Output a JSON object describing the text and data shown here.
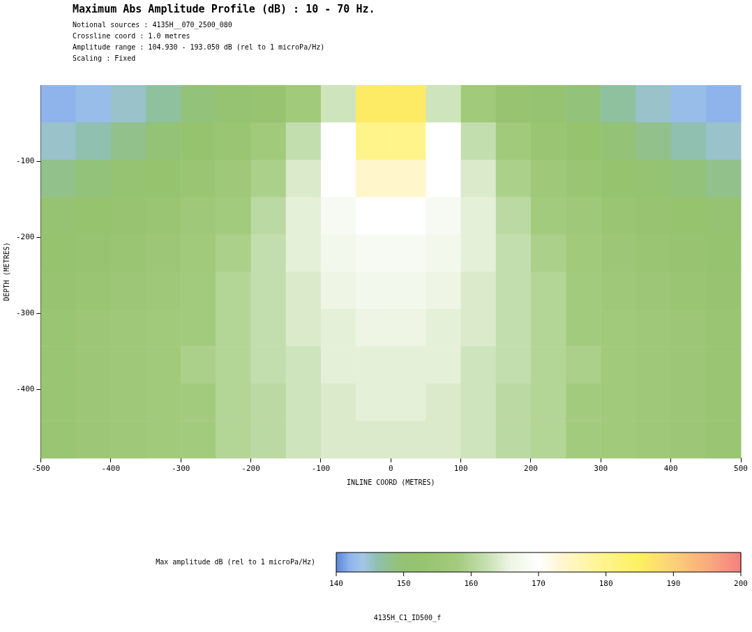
{
  "chart_data": {
    "type": "heatmap",
    "title": "Maximum Abs Amplitude Profile (dB) : 10 - 70 Hz.",
    "xlabel": "INLINE COORD (METRES)",
    "ylabel": "DEPTH (METRES)",
    "clabel": "Max amplitude dB (rel to 1 microPa/Hz)",
    "annotations": [
      "Notional sources : 4135H__070_2500_080",
      "Crossline coord : 1.0 metres",
      "Amplitude range : 104.930 - 193.050 dB (rel to 1 microPa/Hz)",
      "Scaling : Fixed",
      "4135H_C1_ID500_f"
    ],
    "x": [
      -475,
      -425,
      -375,
      -325,
      -275,
      -225,
      -175,
      -125,
      -75,
      -25,
      25,
      75,
      125,
      175,
      225,
      275,
      325,
      375,
      425,
      475
    ],
    "y": [
      -24.5,
      -73.5,
      -122.5,
      -171.5,
      -220.5,
      -269.5,
      -318.5,
      -367.5,
      -416.5,
      -465.5
    ],
    "xlim": [
      -500,
      500
    ],
    "xticks": [
      -500,
      -400,
      -300,
      -200,
      -100,
      0,
      100,
      200,
      300,
      400,
      500
    ],
    "ylim": [
      -490,
      0
    ],
    "yticks": [
      -100,
      -200,
      -300,
      -400
    ],
    "clim": [
      140,
      200
    ],
    "cticks": [
      140,
      150,
      160,
      170,
      180,
      190,
      200
    ],
    "cells": [
      [
        142,
        143,
        145,
        147,
        149,
        151,
        153,
        157,
        163,
        186,
        186,
        163,
        157,
        153,
        151,
        149,
        147,
        145,
        143,
        142
      ],
      [
        145,
        146,
        148,
        150,
        152,
        154,
        157,
        162,
        170,
        180,
        180,
        170,
        162,
        157,
        154,
        152,
        150,
        148,
        146,
        145
      ],
      [
        148,
        149,
        151,
        152,
        154,
        156,
        159,
        164,
        170,
        174,
        174,
        170,
        164,
        159,
        156,
        154,
        152,
        151,
        149,
        148
      ],
      [
        151,
        152,
        153,
        154,
        156,
        158,
        161,
        165,
        168,
        170,
        170,
        168,
        165,
        161,
        158,
        156,
        154,
        153,
        152,
        151
      ],
      [
        152,
        153,
        154,
        155,
        157,
        159,
        162,
        165,
        167,
        168,
        168,
        167,
        165,
        162,
        159,
        157,
        155,
        154,
        153,
        152
      ],
      [
        153,
        154,
        155,
        156,
        158,
        160,
        162,
        164,
        166,
        167,
        167,
        166,
        164,
        162,
        160,
        158,
        156,
        155,
        154,
        153
      ],
      [
        154,
        155,
        156,
        157,
        158,
        160,
        162,
        164,
        165,
        166,
        166,
        165,
        164,
        162,
        160,
        158,
        157,
        156,
        155,
        154
      ],
      [
        154,
        155,
        156,
        157,
        159,
        160,
        162,
        163,
        165,
        165,
        165,
        165,
        163,
        162,
        160,
        159,
        157,
        156,
        155,
        154
      ],
      [
        154,
        155,
        156,
        157,
        158,
        160,
        161,
        163,
        164,
        165,
        165,
        164,
        163,
        161,
        160,
        158,
        157,
        156,
        155,
        154
      ],
      [
        154,
        155,
        156,
        157,
        158,
        160,
        161,
        163,
        164,
        164,
        164,
        164,
        163,
        161,
        160,
        158,
        157,
        156,
        155,
        154
      ]
    ],
    "grid": false,
    "legend": false
  }
}
